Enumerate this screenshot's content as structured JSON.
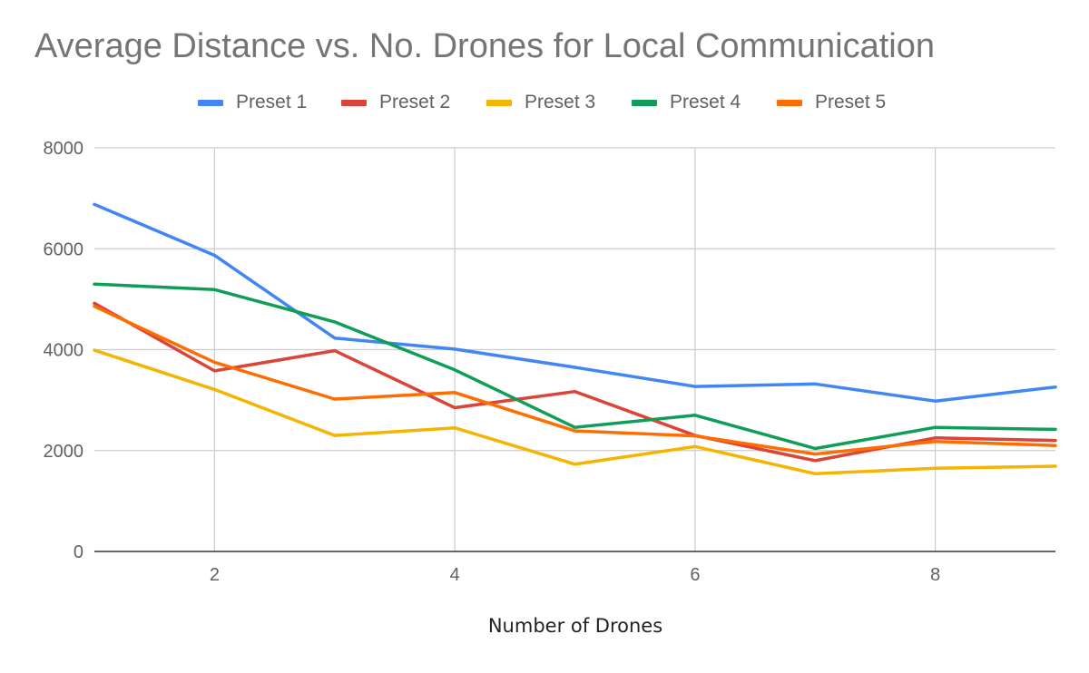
{
  "chart_data": {
    "type": "line",
    "title": "Average Distance vs. No. Drones for Local Communication",
    "xlabel": "Number of Drones",
    "ylabel": "",
    "xlim": [
      1,
      9
    ],
    "ylim": [
      0,
      8000
    ],
    "x_ticks": [
      "2",
      "4",
      "6",
      "8"
    ],
    "y_ticks": [
      "0",
      "2000",
      "4000",
      "6000",
      "8000"
    ],
    "grid": true,
    "legend_position": "top",
    "x": [
      1,
      2,
      3,
      4,
      5,
      6,
      7,
      8,
      9
    ],
    "series": [
      {
        "name": "Preset 1",
        "color": "#4285f4",
        "values": [
          6880,
          5870,
          4230,
          4010,
          3650,
          3270,
          3320,
          2980,
          3260
        ]
      },
      {
        "name": "Preset 2",
        "color": "#db4437",
        "values": [
          4920,
          3580,
          3980,
          2850,
          3170,
          2300,
          1800,
          2250,
          2200
        ]
      },
      {
        "name": "Preset 3",
        "color": "#f4b400",
        "values": [
          3990,
          3210,
          2300,
          2450,
          1730,
          2080,
          1540,
          1650,
          1690
        ]
      },
      {
        "name": "Preset 4",
        "color": "#0f9d58",
        "values": [
          5300,
          5190,
          4550,
          3600,
          2460,
          2700,
          2040,
          2460,
          2420
        ]
      },
      {
        "name": "Preset 5",
        "color": "#ff6d00",
        "values": [
          4860,
          3750,
          3020,
          3150,
          2390,
          2290,
          1930,
          2180,
          2100
        ]
      }
    ]
  }
}
